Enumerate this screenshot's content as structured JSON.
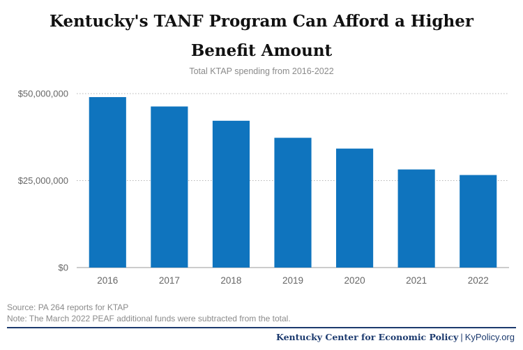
{
  "chart_data": {
    "type": "bar",
    "title": "Kentucky's TANF Program Can Afford a Higher Benefit Amount",
    "title_lines": [
      "Kentucky's TANF Program Can Afford a Higher",
      "Benefit Amount"
    ],
    "subtitle": "Total KTAP spending from 2016-2022",
    "categories": [
      "2016",
      "2017",
      "2018",
      "2019",
      "2020",
      "2021",
      "2022"
    ],
    "values": [
      49000000,
      46300000,
      42200000,
      37300000,
      34200000,
      28200000,
      26600000
    ],
    "ylim": [
      0,
      50000000
    ],
    "yticks": [
      0,
      25000000,
      50000000
    ],
    "ytick_labels": [
      "$0",
      "$25,000,000",
      "$50,000,000"
    ],
    "xlabel": "",
    "ylabel": "",
    "grid": "horizontal-dotted",
    "bar_color": "#0f74be"
  },
  "notes": {
    "source": "Source: PA 264 reports for KTAP",
    "note": "Note: The March 2022 PEAF additional funds were subtracted from the total."
  },
  "footer": {
    "org": "Kentucky Center for Economic Policy",
    "separator": "|",
    "site": "KyPolicy.org"
  }
}
